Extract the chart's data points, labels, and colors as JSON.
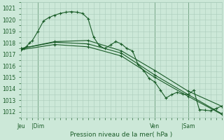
{
  "xlabel": "Pression niveau de la mer( hPa )",
  "ylim": [
    1011.5,
    1021.5
  ],
  "xlim": [
    0,
    36
  ],
  "background_color": "#cce8d8",
  "grid_color": "#aaccbb",
  "line_color": "#1a5c28",
  "tick_label_color": "#1a5c28",
  "xlabel_color": "#1a5c28",
  "series1_x": [
    0.0,
    0.5,
    1.0,
    1.5,
    2.0,
    3.0,
    4.0,
    5.0,
    6.0,
    7.0,
    8.0,
    9.0,
    10.0,
    11.0,
    12.0,
    13.0,
    14.0,
    15.0,
    16.0,
    17.0,
    18.0,
    19.0,
    20.0,
    21.0,
    22.0,
    23.0,
    24.0,
    25.0,
    26.0,
    27.0,
    28.0,
    29.0,
    30.0,
    31.0,
    32.0,
    33.0,
    34.0,
    35.0,
    36.0
  ],
  "series1_y": [
    1017.4,
    1017.5,
    1017.7,
    1018.0,
    1018.2,
    1019.0,
    1019.9,
    1020.2,
    1020.4,
    1020.55,
    1020.65,
    1020.7,
    1020.65,
    1020.55,
    1020.1,
    1018.5,
    1017.75,
    1017.5,
    1017.8,
    1018.1,
    1017.9,
    1017.5,
    1017.3,
    1016.1,
    1015.6,
    1014.9,
    1014.6,
    1013.9,
    1013.2,
    1013.5,
    1013.7,
    1013.55,
    1013.5,
    1013.9,
    1012.2,
    1012.15,
    1012.1,
    1012.3,
    1012.5
  ],
  "series2_x": [
    0.0,
    6.0,
    12.0,
    18.0,
    24.0,
    30.0,
    36.0
  ],
  "series2_y": [
    1017.5,
    1018.1,
    1018.2,
    1017.3,
    1015.6,
    1013.8,
    1012.5
  ],
  "series3_x": [
    0.0,
    6.0,
    12.0,
    18.0,
    24.0,
    30.0,
    36.0
  ],
  "series3_y": [
    1017.5,
    1018.05,
    1017.9,
    1017.1,
    1015.2,
    1013.5,
    1011.85
  ],
  "series4_x": [
    0.0,
    6.0,
    12.0,
    18.0,
    24.0,
    30.0,
    36.0
  ],
  "series4_y": [
    1017.4,
    1017.85,
    1017.65,
    1016.85,
    1015.0,
    1013.35,
    1011.8
  ],
  "x_tick_positions": [
    0,
    3,
    6,
    12,
    18,
    24,
    30,
    36
  ],
  "x_tick_labels": [
    "Jeu",
    "|Dim",
    "",
    "",
    "",
    "Ven",
    "|Sam",
    ""
  ],
  "y_tick_positions": [
    1012,
    1013,
    1014,
    1015,
    1016,
    1017,
    1018,
    1019,
    1020,
    1021
  ],
  "vlines": [
    3,
    24,
    30
  ]
}
